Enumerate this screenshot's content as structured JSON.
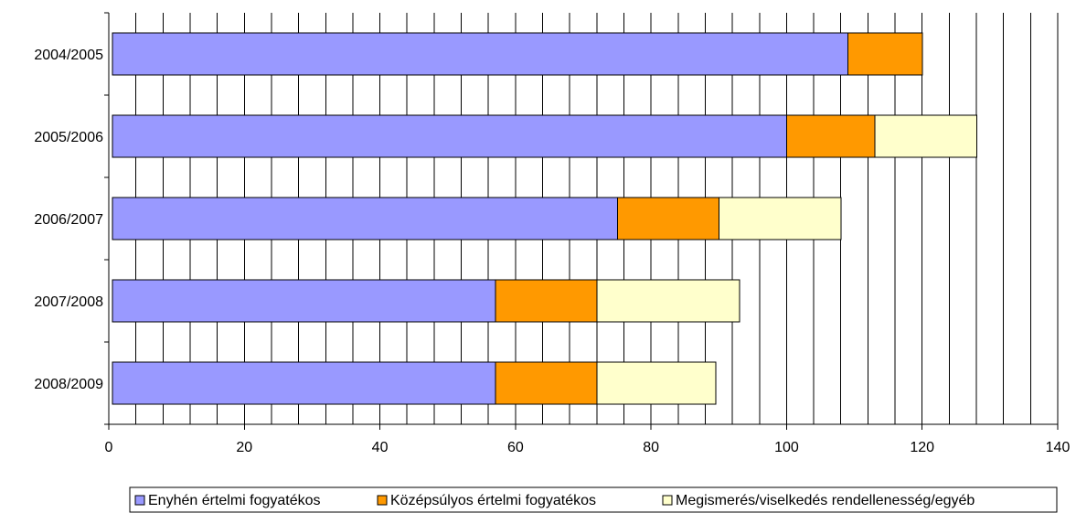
{
  "chart_data": {
    "type": "bar",
    "orientation": "horizontal",
    "stacked": true,
    "categories": [
      "2004/2005",
      "2005/2006",
      "2006/2007",
      "2007/2008",
      "2008/2009"
    ],
    "series": [
      {
        "name": "Enyhén értelmi fogyatékos",
        "values": [
          108.5,
          99.5,
          74.5,
          56.5,
          56.5
        ],
        "color": "#9999ff"
      },
      {
        "name": "Középsúlyos értelmi fogyatékos",
        "values": [
          11,
          13,
          15,
          15,
          15
        ],
        "color": "#ff9900"
      },
      {
        "name": "Megismerés/viselkedés rendellenesség/egyéb",
        "values": [
          0,
          15,
          18,
          21,
          17.5
        ],
        "color": "#ffffcc"
      }
    ],
    "xlim": [
      0,
      140
    ],
    "x_ticks": [
      "0",
      "20",
      "40",
      "60",
      "80",
      "100",
      "120",
      "140"
    ],
    "minor_grid_step": 4,
    "grid": true,
    "legend_position": "bottom"
  }
}
